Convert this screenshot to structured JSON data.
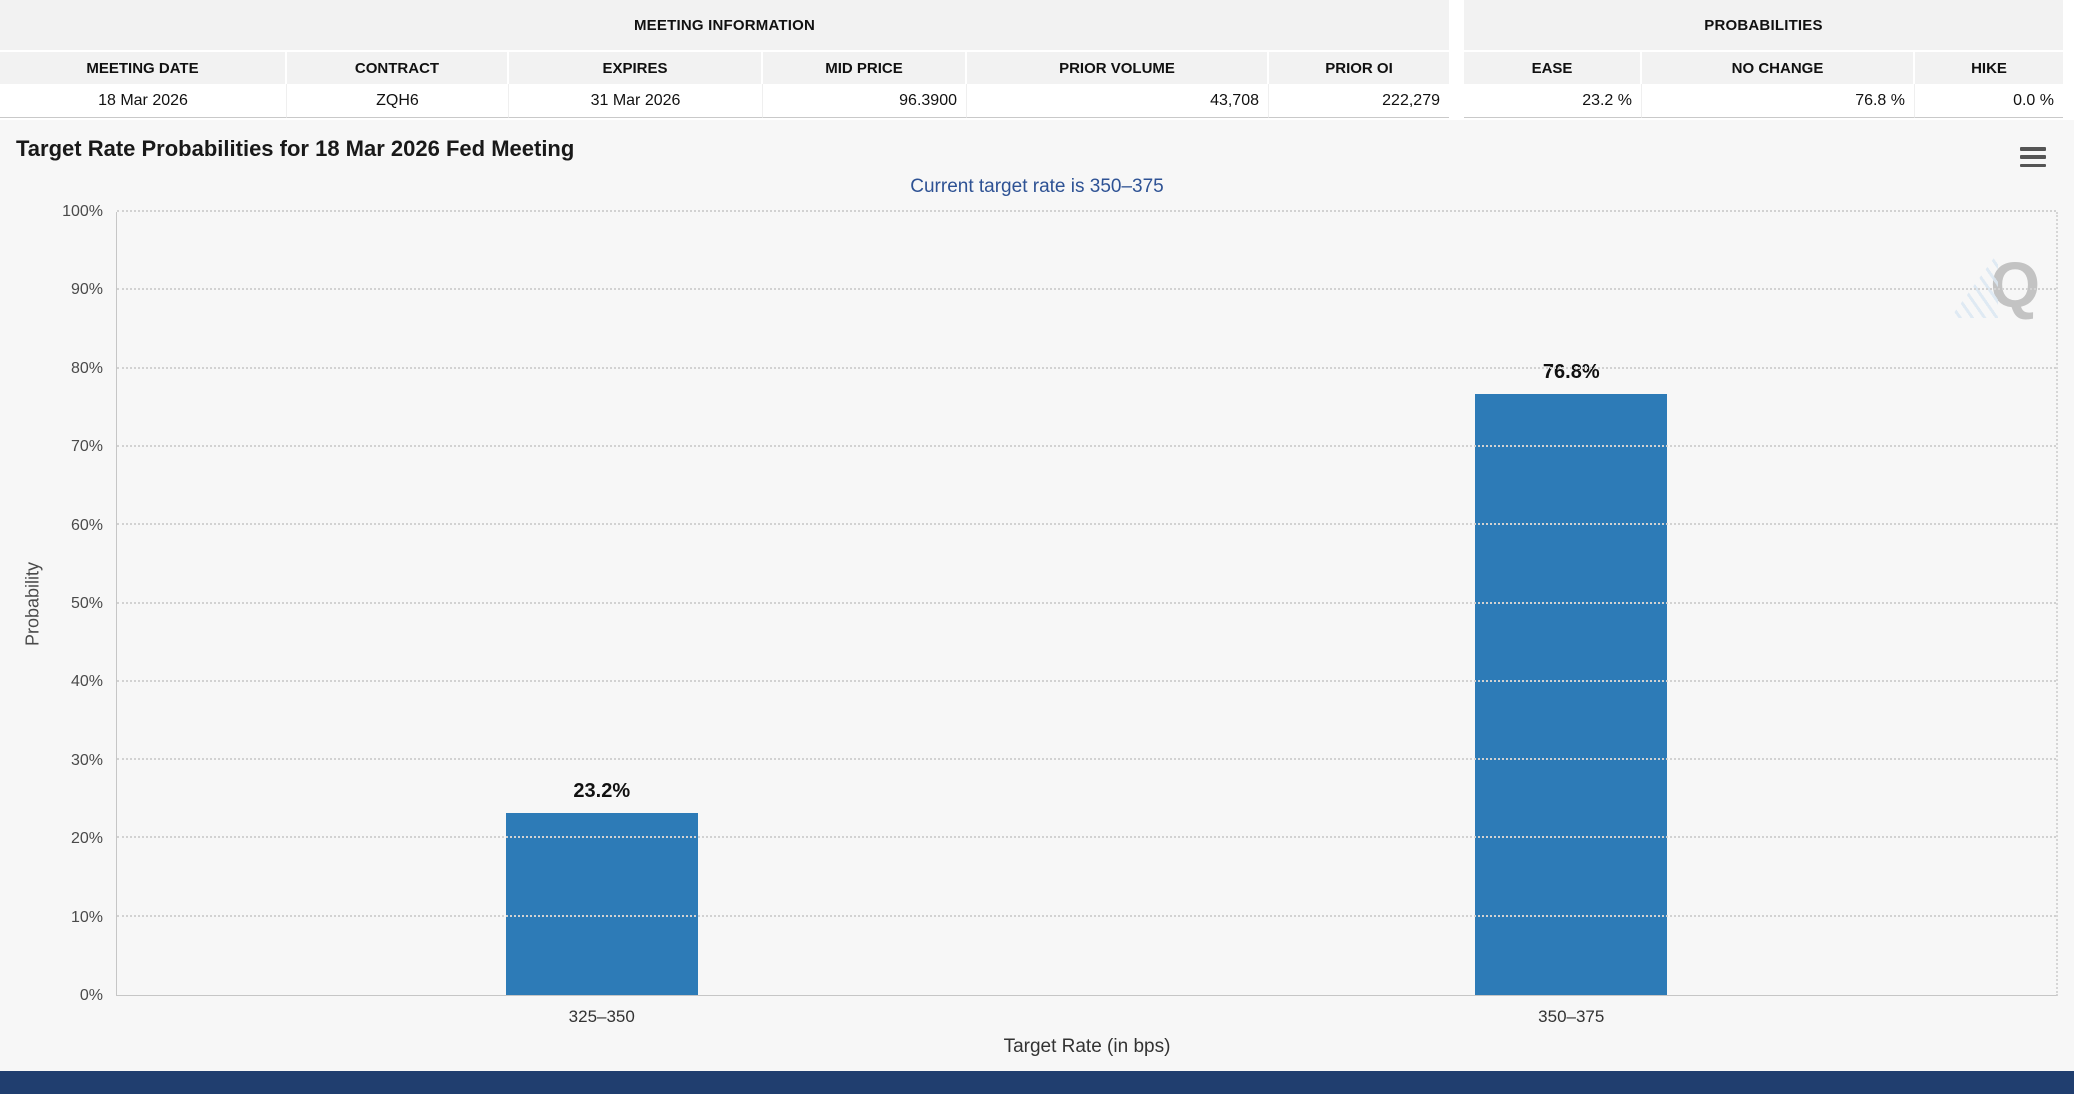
{
  "meeting_info": {
    "title": "MEETING INFORMATION",
    "columns": [
      "MEETING DATE",
      "CONTRACT",
      "EXPIRES",
      "MID PRICE",
      "PRIOR VOLUME",
      "PRIOR OI"
    ],
    "row": [
      "18 Mar 2026",
      "ZQH6",
      "31 Mar 2026",
      "96.3900",
      "43,708",
      "222,279"
    ]
  },
  "probabilities_table": {
    "title": "PROBABILITIES",
    "columns": [
      "EASE",
      "NO CHANGE",
      "HIKE"
    ],
    "row": [
      "23.2 %",
      "76.8 %",
      "0.0 %"
    ]
  },
  "chart": {
    "title": "Target Rate Probabilities for 18 Mar 2026 Fed Meeting",
    "subtitle": "Current target rate is 350–375",
    "xlabel": "Target Rate (in bps)",
    "ylabel": "Probability",
    "menu_icon": "hamburger-menu-icon"
  },
  "chart_data": {
    "type": "bar",
    "categories": [
      "325–350",
      "350–375"
    ],
    "values": [
      23.2,
      76.8
    ],
    "data_labels": [
      "23.2%",
      "76.8%"
    ],
    "title": "Target Rate Probabilities for 18 Mar 2026 Fed Meeting",
    "subtitle": "Current target rate is 350–375",
    "xlabel": "Target Rate (in bps)",
    "ylabel": "Probability",
    "ylim": [
      0,
      100
    ],
    "yticks": [
      "0%",
      "10%",
      "20%",
      "30%",
      "40%",
      "50%",
      "60%",
      "70%",
      "80%",
      "90%",
      "100%"
    ],
    "legend": "none",
    "grid": "dotted-horizontal",
    "bar_color": "#2d7bb7"
  },
  "watermark": {
    "letter": "Q"
  },
  "colors": {
    "bar": "#2d7bb7",
    "subtitle_text": "#2e5294",
    "footer_bar": "#203e6f",
    "gridline": "#d2d2d2",
    "table_header_bg": "#f2f2f2",
    "page_bg": "#f7f7f7"
  }
}
